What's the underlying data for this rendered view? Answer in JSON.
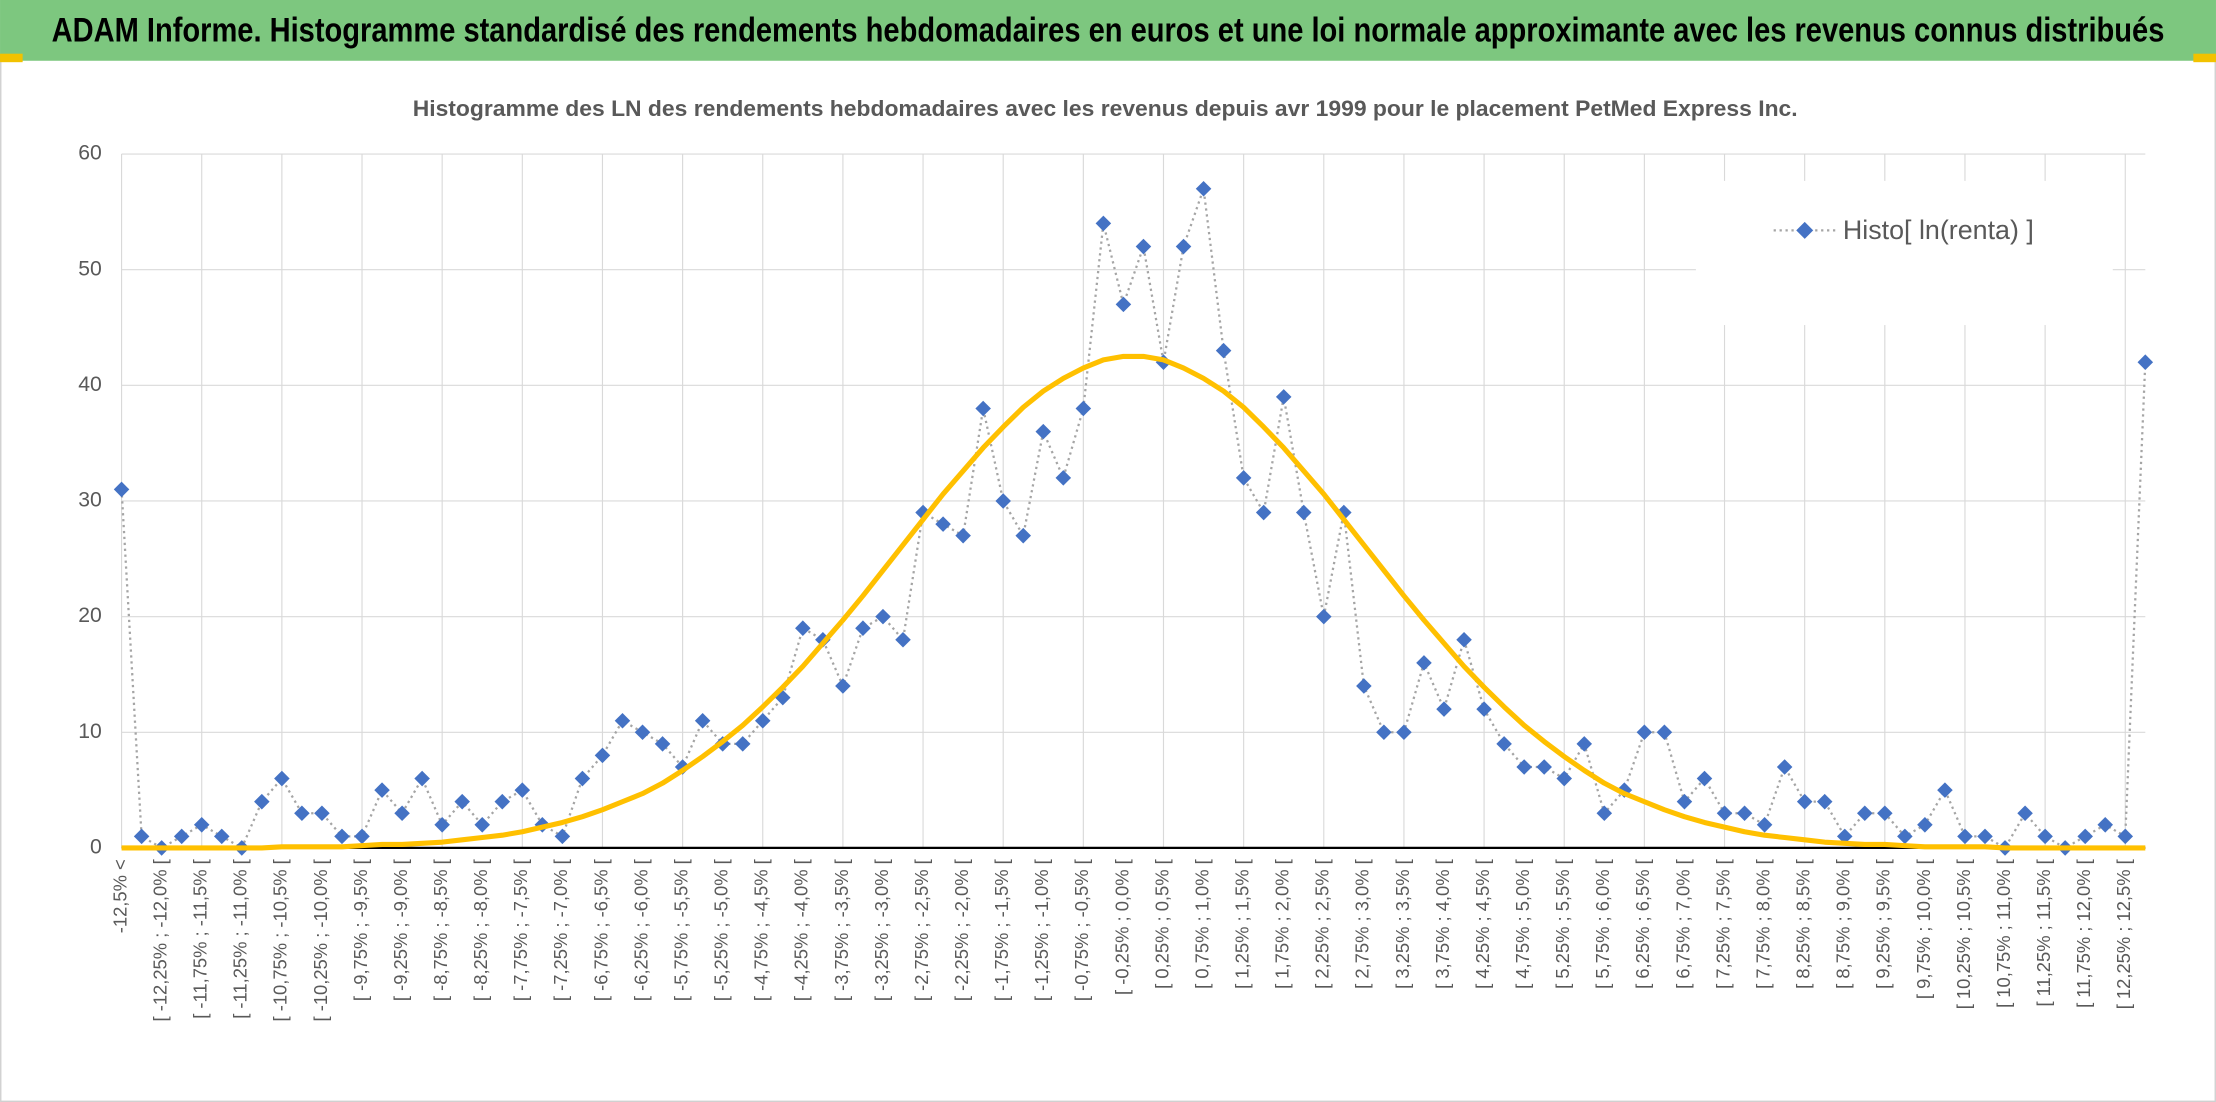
{
  "chart_data": {
    "type": "line",
    "title": "ADAM Informe. Histogramme standardisé des rendements hebdomadaires en euros et une loi normale approximante avec les revenus connus distribués",
    "subtitle": "Histogramme des LN des rendements hebdomadaires avec les revenus depuis avr 1999 pour le placement PetMed Express Inc.",
    "categories": [
      "-12,5% <",
      null,
      "[ -12,25% ; -12,0% [",
      null,
      "[ -11,75% ; -11,5% [",
      null,
      "[ -11,25% ; -11,0% [",
      null,
      "[ -10,75% ; -10,5% [",
      null,
      "[ -10,25% ; -10,0% [",
      null,
      "[ -9,75% ; -9,5% [",
      null,
      "[ -9,25% ; -9,0% [",
      null,
      "[ -8,75% ; -8,5% [",
      null,
      "[ -8,25% ; -8,0% [",
      null,
      "[ -7,75% ; -7,5% [",
      null,
      "[ -7,25% ; -7,0% [",
      null,
      "[ -6,75% ; -6,5% [",
      null,
      "[ -6,25% ; -6,0% [",
      null,
      "[ -5,75% ; -5,5% [",
      null,
      "[ -5,25% ; -5,0% [",
      null,
      "[ -4,75% ; -4,5% [",
      null,
      "[ -4,25% ; -4,0% [",
      null,
      "[ -3,75% ; -3,5% [",
      null,
      "[ -3,25% ; -3,0% [",
      null,
      "[ -2,75% ; -2,5% [",
      null,
      "[ -2,25% ; -2,0% [",
      null,
      "[ -1,75% ; -1,5% [",
      null,
      "[ -1,25% ; -1,0% [",
      null,
      "[ -0,75% ; -0,5% [",
      null,
      "[ -0,25% ; 0,0% [",
      null,
      "[ 0,25% ; 0,5% [",
      null,
      "[ 0,75% ; 1,0% [",
      null,
      "[ 1,25% ; 1,5% [",
      null,
      "[ 1,75% ; 2,0% [",
      null,
      "[ 2,25% ; 2,5% [",
      null,
      "[ 2,75% ; 3,0% [",
      null,
      "[ 3,25% ; 3,5% [",
      null,
      "[ 3,75% ; 4,0% [",
      null,
      "[ 4,25% ; 4,5% [",
      null,
      "[ 4,75% ; 5,0% [",
      null,
      "[ 5,25% ; 5,5% [",
      null,
      "[ 5,75% ; 6,0% [",
      null,
      "[ 6,25% ; 6,5% [",
      null,
      "[ 6,75% ; 7,0% [",
      null,
      "[ 7,25% ; 7,5% [",
      null,
      "[ 7,75% ; 8,0% [",
      null,
      "[ 8,25% ; 8,5% [",
      null,
      "[ 8,75% ; 9,0% [",
      null,
      "[ 9,25% ; 9,5% [",
      null,
      "[ 9,75% ; 10,0% [",
      null,
      "[ 10,25% ; 10,5% [",
      null,
      "[ 10,75% ; 11,0% [",
      null,
      "[ 11,25% ; 11,5% [",
      null,
      "[ 11,75% ; 12,0% [",
      null,
      "[ 12,25% ; 12,5% [",
      null
    ],
    "series": [
      {
        "name": "Histo[ ln(renta) ]",
        "color": "#4472c4",
        "line_color": "#a5a5a5",
        "values": [
          31,
          1,
          0,
          1,
          2,
          1,
          0,
          4,
          6,
          3,
          3,
          1,
          1,
          5,
          3,
          6,
          2,
          4,
          2,
          4,
          5,
          2,
          1,
          6,
          8,
          11,
          10,
          9,
          7,
          11,
          9,
          9,
          11,
          13,
          19,
          18,
          14,
          19,
          20,
          18,
          29,
          28,
          27,
          38,
          30,
          27,
          36,
          32,
          38,
          54,
          47,
          52,
          42,
          52,
          57,
          43,
          32,
          29,
          39,
          29,
          20,
          29,
          14,
          10,
          10,
          16,
          12,
          18,
          12,
          9,
          7,
          7,
          6,
          9,
          3,
          5,
          10,
          10,
          4,
          6,
          3,
          3,
          2,
          7,
          4,
          4,
          1,
          3,
          3,
          1,
          2,
          5,
          1,
          1,
          0,
          3,
          1,
          0,
          1,
          2,
          1,
          42
        ]
      },
      {
        "color": "#ffc000",
        "values": [
          0,
          0,
          0,
          0,
          0,
          0,
          0,
          0,
          0.1,
          0.1,
          0.1,
          0.1,
          0.2,
          0.3,
          0.3,
          0.4,
          0.5,
          0.7,
          0.9,
          1.1,
          1.4,
          1.8,
          2.2,
          2.7,
          3.3,
          4.0,
          4.7,
          5.6,
          6.7,
          7.9,
          9.2,
          10.6,
          12.2,
          13.9,
          15.7,
          17.7,
          19.7,
          21.8,
          24.0,
          26.2,
          28.4,
          30.6,
          32.6,
          34.6,
          36.4,
          38.1,
          39.5,
          40.6,
          41.5,
          42.2,
          42.5,
          42.5,
          42.2,
          41.5,
          40.6,
          39.5,
          38.1,
          36.4,
          34.6,
          32.6,
          30.6,
          28.4,
          26.2,
          24.0,
          21.8,
          19.7,
          17.7,
          15.7,
          13.9,
          12.2,
          10.6,
          9.2,
          7.9,
          6.7,
          5.6,
          4.7,
          4.0,
          3.3,
          2.7,
          2.2,
          1.8,
          1.4,
          1.1,
          0.9,
          0.7,
          0.5,
          0.4,
          0.3,
          0.3,
          0.2,
          0.1,
          0.1,
          0.1,
          0.1,
          0,
          0,
          0,
          0,
          0,
          0,
          0,
          0
        ]
      }
    ],
    "ylim": [
      0,
      60
    ],
    "yticks": [
      0,
      10,
      20,
      30,
      40,
      50,
      60
    ],
    "grid": true,
    "legend": "upper right"
  }
}
